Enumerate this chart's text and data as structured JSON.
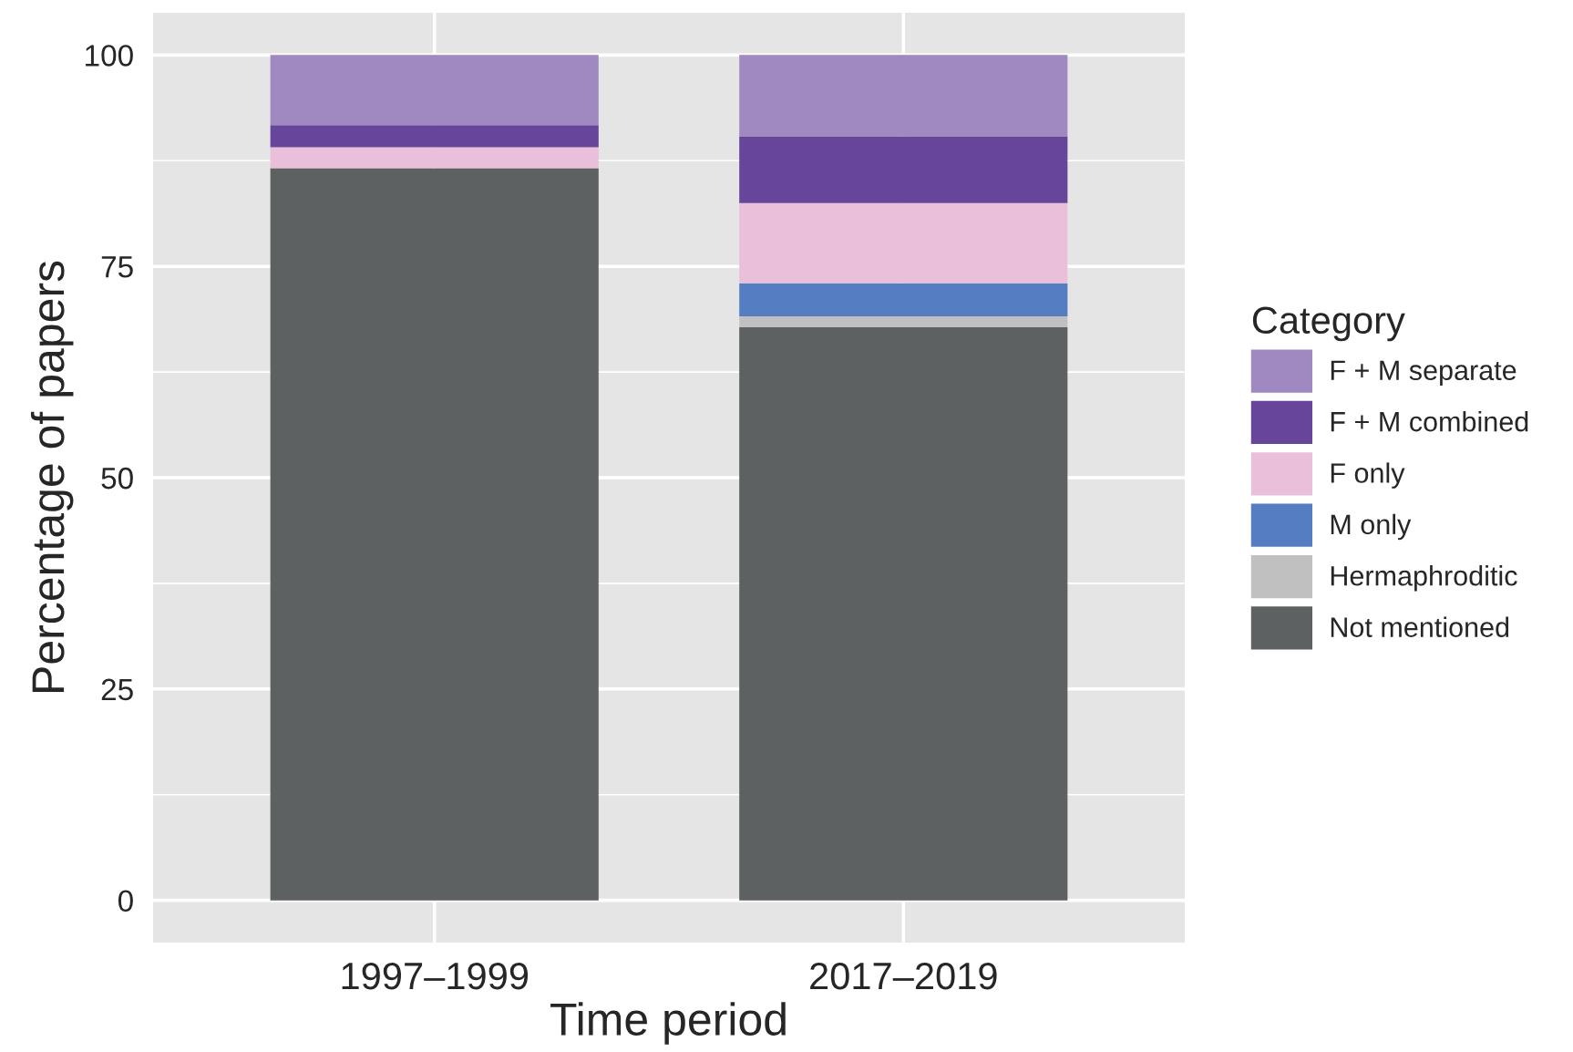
{
  "chart_data": {
    "type": "bar",
    "stacked": true,
    "xlabel": "Time period",
    "ylabel": "Percentage of papers",
    "legend_title": "Category",
    "legend": "right",
    "categories": [
      "1997–1999",
      "2017–2019"
    ],
    "series": [
      {
        "name": "Not mentioned",
        "color": "#5d6162",
        "values": [
          86.6,
          67.8
        ]
      },
      {
        "name": "Hermaphroditic",
        "color": "#c0c0c0",
        "values": [
          0,
          1.3
        ]
      },
      {
        "name": "M only",
        "color": "#547dc2",
        "values": [
          0,
          3.9
        ]
      },
      {
        "name": "F only",
        "color": "#eabfda",
        "values": [
          2.5,
          9.5
        ]
      },
      {
        "name": "F + M combined",
        "color": "#66459b",
        "values": [
          2.6,
          7.9
        ]
      },
      {
        "name": "F + M separate",
        "color": "#a089c1",
        "values": [
          8.3,
          9.6
        ]
      }
    ],
    "ylim": [
      -5,
      105
    ],
    "yticks": [
      0,
      {
        "value": 12.5,
        "label": null
      },
      25,
      {
        "value": 37.5,
        "label": null
      },
      50,
      {
        "value": 62.5,
        "label": null
      },
      75,
      {
        "value": 87.5,
        "label": null
      },
      100
    ],
    "grid": true
  }
}
